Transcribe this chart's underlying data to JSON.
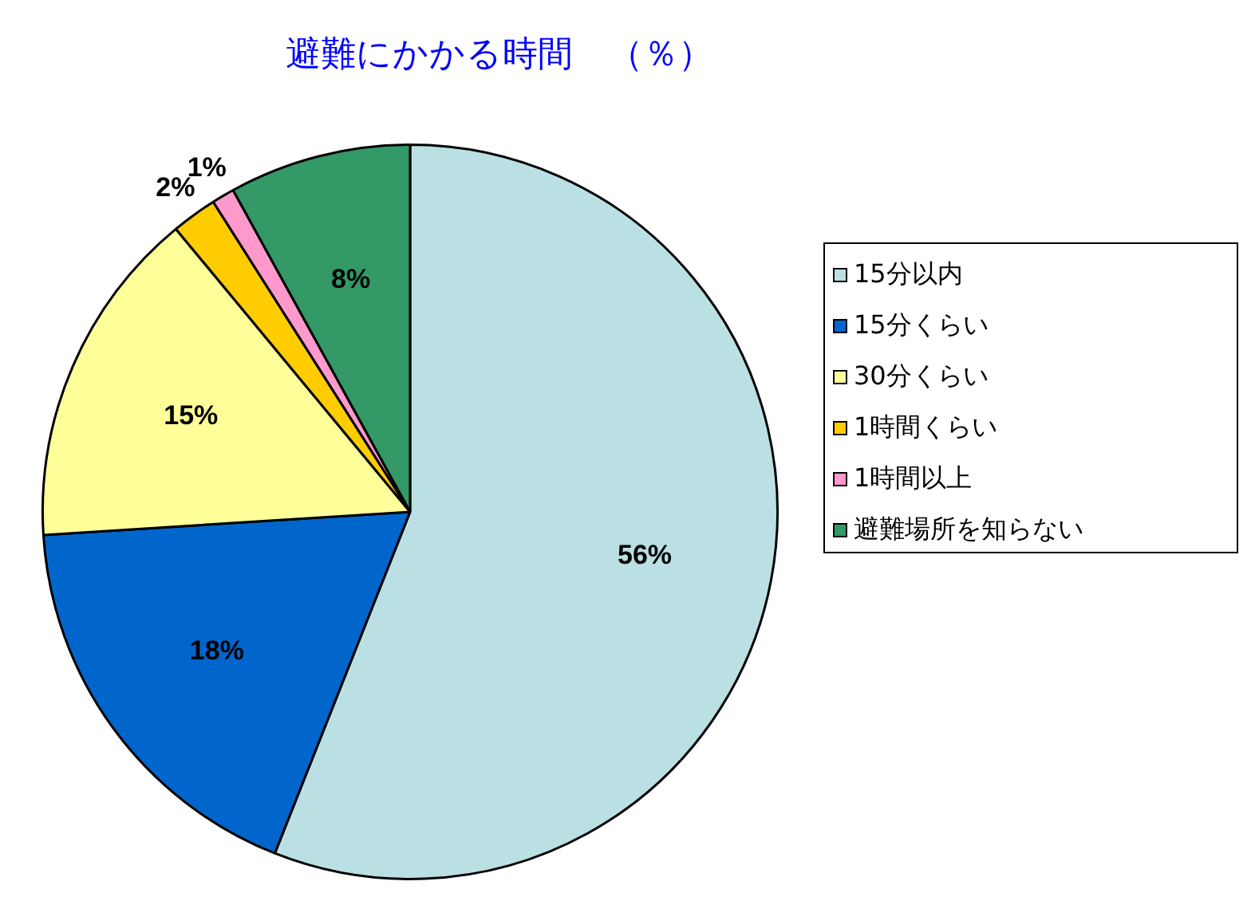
{
  "chart_data": {
    "type": "pie",
    "title": "避難にかかる時間　（％）",
    "categories": [
      "15分以内",
      "15分くらい",
      "30分くらい",
      "1時間くらい",
      "1時間以上",
      "避難場所を知らない"
    ],
    "values": [
      56,
      18,
      15,
      2,
      1,
      8
    ],
    "colors": [
      "#bbe0e3",
      "#0066cc",
      "#ffff99",
      "#ffcc00",
      "#ff99cc",
      "#339966"
    ],
    "value_labels": [
      "56%",
      "18%",
      "15%",
      "2%",
      "1%",
      "8%"
    ],
    "legend": "right"
  }
}
